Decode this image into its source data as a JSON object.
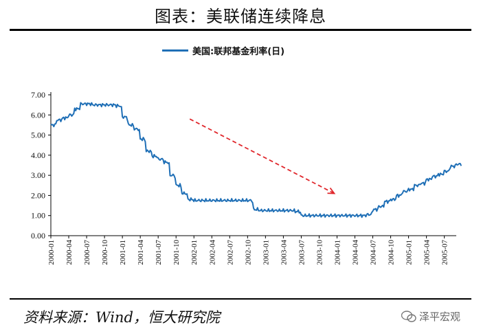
{
  "title": "图表：美联储连续降息",
  "source": "资料来源：Wind，恒大研究院",
  "watermark": "泽平宏观",
  "legend_label": "美国:联邦基金利率(日)",
  "colors": {
    "series": "#1f6fb6",
    "arrow": "#e0262b",
    "axis": "#000000"
  },
  "chart_data": {
    "type": "line",
    "title": "图表：美联储连续降息",
    "xlabel": "",
    "ylabel": "",
    "ylim": [
      0,
      7
    ],
    "yticks": [
      "0.00",
      "1.00",
      "2.00",
      "3.00",
      "4.00",
      "5.00",
      "6.00",
      "7.00"
    ],
    "xticks": [
      "2000-01",
      "2000-04",
      "2000-07",
      "2000-10",
      "2001-01",
      "2001-04",
      "2001-07",
      "2001-10",
      "2002-01",
      "2002-04",
      "2002-07",
      "2002-10",
      "2003-01",
      "2003-04",
      "2003-07",
      "2003-10",
      "2004-01",
      "2004-04",
      "2004-07",
      "2004-10",
      "2005-01",
      "2005-04",
      "2005-07"
    ],
    "grid": false,
    "legend": "top-center",
    "annotation": "downward trend arrow from 2001-10 to 2004-01",
    "series": [
      {
        "name": "美国:联邦基金利率(日)",
        "x": [
          "2000-01",
          "2000-02",
          "2000-03",
          "2000-04",
          "2000-05",
          "2000-06",
          "2000-07",
          "2000-08",
          "2000-09",
          "2000-10",
          "2000-11",
          "2000-12",
          "2001-01",
          "2001-02",
          "2001-03",
          "2001-04",
          "2001-05",
          "2001-06",
          "2001-07",
          "2001-08",
          "2001-09",
          "2001-10",
          "2001-11",
          "2001-12",
          "2002-01",
          "2002-02",
          "2002-03",
          "2002-04",
          "2002-05",
          "2002-06",
          "2002-07",
          "2002-08",
          "2002-09",
          "2002-10",
          "2002-11",
          "2002-12",
          "2003-01",
          "2003-02",
          "2003-03",
          "2003-04",
          "2003-05",
          "2003-06",
          "2003-07",
          "2003-08",
          "2003-09",
          "2003-10",
          "2003-11",
          "2003-12",
          "2004-01",
          "2004-02",
          "2004-03",
          "2004-04",
          "2004-05",
          "2004-06",
          "2004-07",
          "2004-08",
          "2004-09",
          "2004-10",
          "2004-11",
          "2004-12",
          "2005-01",
          "2005-02",
          "2005-03",
          "2005-04",
          "2005-05",
          "2005-06",
          "2005-07",
          "2005-08",
          "2005-09"
        ],
        "values": [
          5.5,
          5.75,
          5.85,
          6.0,
          6.3,
          6.55,
          6.55,
          6.5,
          6.5,
          6.5,
          6.5,
          6.45,
          5.9,
          5.5,
          5.3,
          4.8,
          4.2,
          3.95,
          3.8,
          3.65,
          3.0,
          2.5,
          2.1,
          1.8,
          1.75,
          1.75,
          1.75,
          1.75,
          1.75,
          1.75,
          1.75,
          1.75,
          1.75,
          1.75,
          1.3,
          1.25,
          1.25,
          1.25,
          1.25,
          1.25,
          1.25,
          1.2,
          1.0,
          1.0,
          1.0,
          1.0,
          1.0,
          1.0,
          1.0,
          1.0,
          1.0,
          1.0,
          1.0,
          1.05,
          1.3,
          1.45,
          1.7,
          1.8,
          2.0,
          2.2,
          2.3,
          2.5,
          2.6,
          2.8,
          2.95,
          3.05,
          3.2,
          3.45,
          3.55
        ]
      }
    ]
  }
}
